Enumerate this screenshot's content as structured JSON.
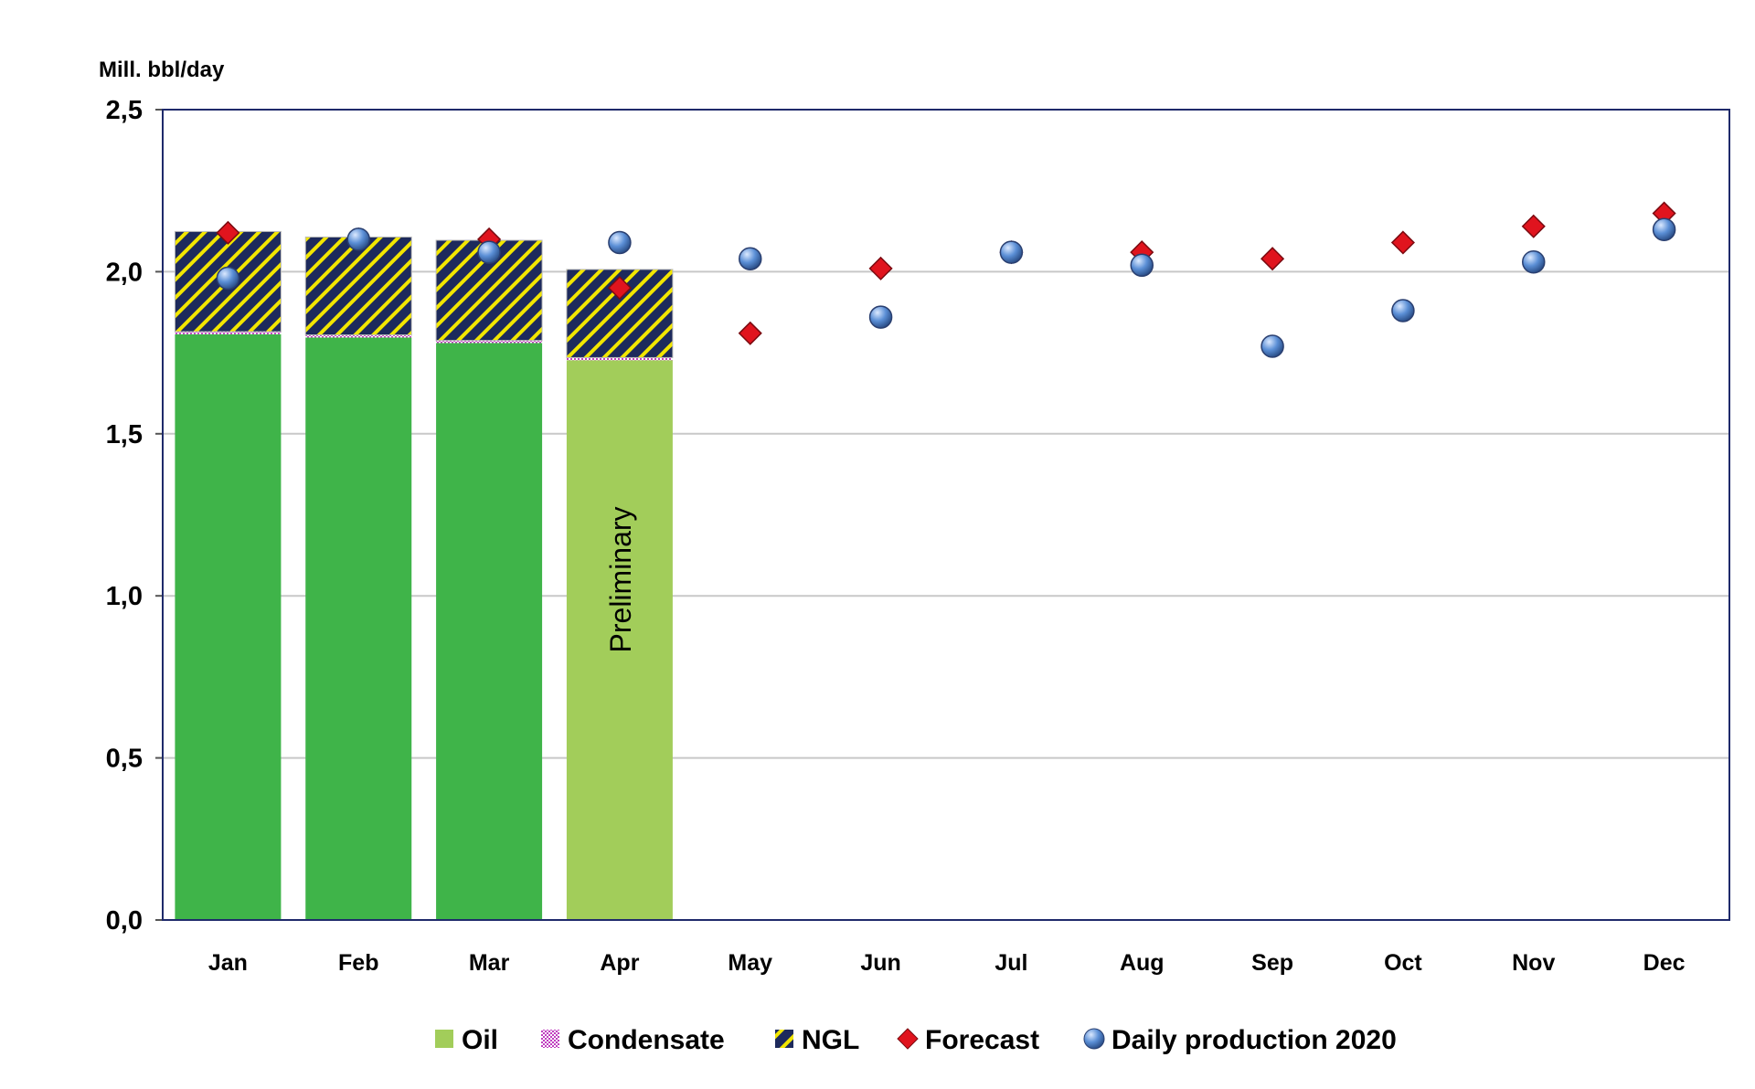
{
  "chart_data": {
    "type": "bar",
    "stacked": true,
    "ylabel": "Mill. bbl/day",
    "ylim": [
      0,
      2.5
    ],
    "yticks": [
      "0,0",
      "0,5",
      "1,0",
      "1,5",
      "2,0",
      "2,5"
    ],
    "ytick_values": [
      0,
      0.5,
      1.0,
      1.5,
      2.0,
      2.5
    ],
    "grid": true,
    "legend_position": "bottom",
    "categories": [
      "Jan",
      "Feb",
      "Mar",
      "Apr",
      "May",
      "Jun",
      "Jul",
      "Aug",
      "Sep",
      "Oct",
      "Nov",
      "Dec"
    ],
    "annotation": {
      "text": "Preliminary",
      "category": "Apr"
    },
    "series": [
      {
        "name": "Oil",
        "kind": "bar",
        "color": "#3fb449",
        "preliminary_color": "#a2cd5a",
        "values": [
          1.807,
          1.797,
          1.78,
          1.727,
          null,
          null,
          null,
          null,
          null,
          null,
          null,
          null
        ]
      },
      {
        "name": "Condensate",
        "kind": "bar",
        "color": "#e6a0e6",
        "values": [
          0.008,
          0.008,
          0.008,
          0.008,
          null,
          null,
          null,
          null,
          null,
          null,
          null,
          null
        ]
      },
      {
        "name": "NGL",
        "kind": "bar",
        "color": "#1d2a5c",
        "stripe_color": "#f2e600",
        "values": [
          0.309,
          0.302,
          0.309,
          0.272,
          null,
          null,
          null,
          null,
          null,
          null,
          null,
          null
        ]
      },
      {
        "name": "Forecast",
        "kind": "marker",
        "marker": "diamond",
        "color": "#e0141e",
        "values": [
          2.12,
          2.1,
          2.1,
          1.95,
          1.81,
          2.01,
          2.06,
          2.06,
          2.04,
          2.09,
          2.14,
          2.18
        ]
      },
      {
        "name": "Daily production 2020",
        "kind": "marker",
        "marker": "circle",
        "color": "#5b8fd6",
        "values": [
          1.98,
          2.1,
          2.06,
          2.09,
          2.04,
          1.86,
          2.06,
          2.02,
          1.77,
          1.88,
          2.03,
          2.13
        ]
      }
    ]
  }
}
